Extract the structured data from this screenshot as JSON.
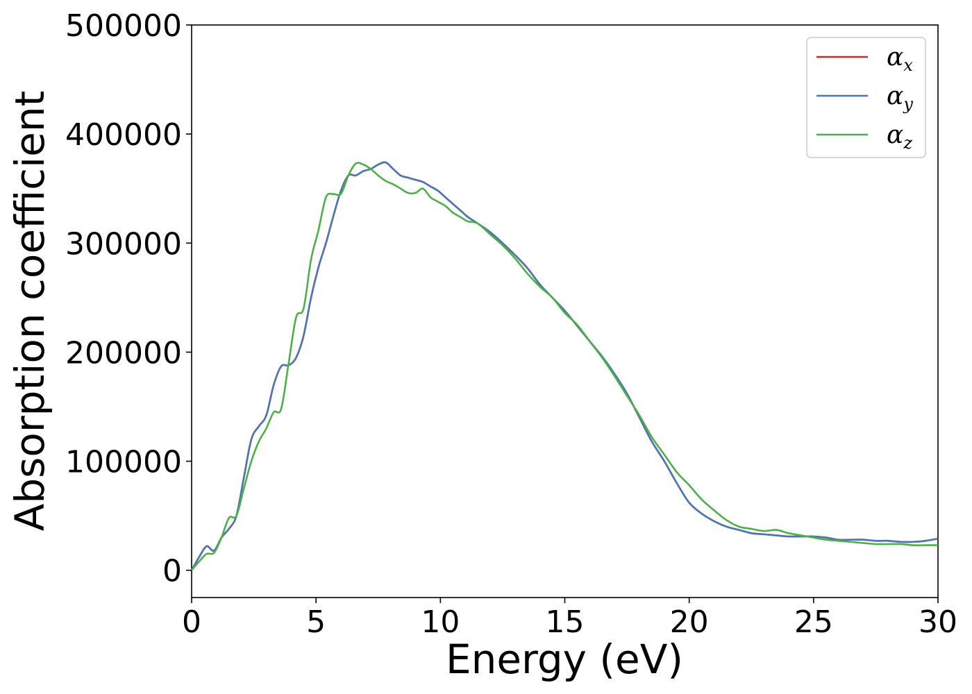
{
  "chart_data": {
    "type": "line",
    "xlabel": "Energy (eV)",
    "ylabel": "Absorption coefficient",
    "xlim": [
      0,
      30
    ],
    "ylim": [
      -25000,
      500000
    ],
    "xticks": [
      0,
      5,
      10,
      15,
      20,
      25,
      30
    ],
    "yticks": [
      0,
      100000,
      200000,
      300000,
      400000,
      500000
    ],
    "xtick_labels": [
      "0",
      "5",
      "10",
      "15",
      "20",
      "25",
      "30"
    ],
    "ytick_labels": [
      "0",
      "100000",
      "200000",
      "300000",
      "400000",
      "500000"
    ],
    "grid": false,
    "legend_position": "top-right",
    "series": [
      {
        "name": "α",
        "sub": "x",
        "color": "#d62728",
        "x": [
          0,
          0.3,
          0.6,
          0.9,
          1.2,
          1.5,
          1.8,
          2.1,
          2.4,
          2.7,
          3.0,
          3.3,
          3.6,
          3.9,
          4.2,
          4.5,
          4.8,
          5.1,
          5.4,
          5.7,
          6.0,
          6.3,
          6.6,
          6.9,
          7.2,
          7.5,
          7.8,
          8.1,
          8.4,
          8.7,
          9.0,
          9.3,
          9.6,
          9.9,
          10.2,
          10.5,
          10.8,
          11.1,
          11.5,
          12,
          12.5,
          13,
          13.5,
          14,
          14.5,
          15,
          15.5,
          16,
          16.5,
          17,
          17.5,
          18,
          18.5,
          19,
          19.5,
          20,
          20.5,
          21,
          21.5,
          22,
          22.5,
          23,
          23.5,
          24,
          24.5,
          25,
          25.5,
          26,
          26.5,
          27,
          27.5,
          28,
          28.5,
          29,
          29.5,
          30
        ],
        "y": [
          0,
          12000,
          22000,
          18000,
          30000,
          38000,
          50000,
          85000,
          120000,
          132000,
          142000,
          170000,
          187000,
          188000,
          195000,
          215000,
          250000,
          278000,
          300000,
          325000,
          348000,
          362000,
          362000,
          366000,
          368000,
          372000,
          374000,
          368000,
          362000,
          360000,
          358000,
          356000,
          352000,
          348000,
          342000,
          336000,
          330000,
          324000,
          318000,
          310000,
          300000,
          289000,
          277000,
          262000,
          250000,
          238000,
          224000,
          210000,
          196000,
          180000,
          162000,
          140000,
          118000,
          100000,
          80000,
          62000,
          52000,
          45000,
          40000,
          37000,
          34000,
          33000,
          32000,
          31000,
          31000,
          31000,
          30000,
          28000,
          28000,
          28000,
          27000,
          27000,
          26000,
          26000,
          27000,
          29000
        ]
      },
      {
        "name": "α",
        "sub": "y",
        "color": "#4a77b4",
        "x": [
          0,
          0.3,
          0.6,
          0.9,
          1.2,
          1.5,
          1.8,
          2.1,
          2.4,
          2.7,
          3.0,
          3.3,
          3.6,
          3.9,
          4.2,
          4.5,
          4.8,
          5.1,
          5.4,
          5.7,
          6.0,
          6.3,
          6.6,
          6.9,
          7.2,
          7.5,
          7.8,
          8.1,
          8.4,
          8.7,
          9.0,
          9.3,
          9.6,
          9.9,
          10.2,
          10.5,
          10.8,
          11.1,
          11.5,
          12,
          12.5,
          13,
          13.5,
          14,
          14.5,
          15,
          15.5,
          16,
          16.5,
          17,
          17.5,
          18,
          18.5,
          19,
          19.5,
          20,
          20.5,
          21,
          21.5,
          22,
          22.5,
          23,
          23.5,
          24,
          24.5,
          25,
          25.5,
          26,
          26.5,
          27,
          27.5,
          28,
          28.5,
          29,
          29.5,
          30
        ],
        "y": [
          0,
          12000,
          22000,
          18000,
          30000,
          38000,
          50000,
          85000,
          120000,
          132000,
          142000,
          170000,
          187000,
          188000,
          195000,
          215000,
          250000,
          278000,
          300000,
          325000,
          348000,
          362000,
          362000,
          366000,
          368000,
          372000,
          374000,
          368000,
          362000,
          360000,
          358000,
          356000,
          352000,
          348000,
          342000,
          336000,
          330000,
          324000,
          318000,
          310000,
          300000,
          289000,
          277000,
          262000,
          250000,
          238000,
          224000,
          210000,
          196000,
          180000,
          162000,
          140000,
          118000,
          100000,
          80000,
          62000,
          52000,
          45000,
          40000,
          37000,
          34000,
          33000,
          32000,
          31000,
          31000,
          31000,
          30000,
          28000,
          28000,
          28000,
          27000,
          27000,
          26000,
          26000,
          27000,
          29000
        ]
      },
      {
        "name": "α",
        "sub": "z",
        "color": "#4daf4a",
        "x": [
          0,
          0.3,
          0.6,
          0.9,
          1.2,
          1.5,
          1.8,
          2.1,
          2.4,
          2.7,
          3.0,
          3.3,
          3.6,
          3.9,
          4.2,
          4.5,
          4.8,
          5.1,
          5.4,
          5.7,
          6.0,
          6.3,
          6.6,
          6.9,
          7.2,
          7.5,
          7.8,
          8.1,
          8.4,
          8.7,
          9.0,
          9.3,
          9.6,
          9.9,
          10.2,
          10.5,
          10.8,
          11.1,
          11.5,
          12,
          12.5,
          13,
          13.5,
          14,
          14.5,
          15,
          15.5,
          16,
          16.5,
          17,
          17.5,
          18,
          18.5,
          19,
          19.5,
          20,
          20.5,
          21,
          21.5,
          22,
          22.5,
          23,
          23.5,
          24,
          24.5,
          25,
          25.5,
          26,
          26.5,
          27,
          27.5,
          28,
          28.5,
          29,
          29.5,
          30
        ],
        "y": [
          0,
          8000,
          15000,
          16000,
          30000,
          48000,
          50000,
          75000,
          100000,
          118000,
          130000,
          145000,
          148000,
          190000,
          232000,
          240000,
          285000,
          312000,
          342000,
          345000,
          345000,
          362000,
          373000,
          372000,
          368000,
          362000,
          357000,
          354000,
          350000,
          346000,
          346000,
          350000,
          342000,
          338000,
          334000,
          328000,
          324000,
          320000,
          318000,
          308000,
          298000,
          286000,
          272000,
          260000,
          250000,
          236000,
          225000,
          210000,
          195000,
          178000,
          160000,
          142000,
          122000,
          106000,
          90000,
          78000,
          65000,
          55000,
          46000,
          40000,
          38000,
          36000,
          37000,
          34000,
          32000,
          30000,
          28000,
          27000,
          26000,
          25000,
          24000,
          24000,
          24000,
          23000,
          23000,
          23000
        ]
      }
    ]
  }
}
